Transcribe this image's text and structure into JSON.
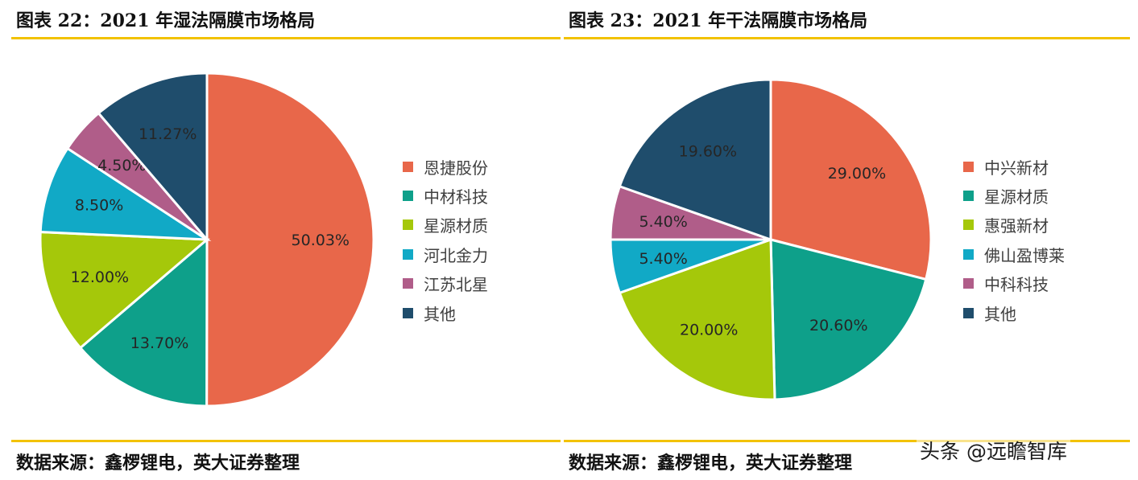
{
  "charts": [
    {
      "title": "图表 22：2021 年湿法隔膜市场格局",
      "source": "数据来源：鑫椤锂电，英大证券整理"
    },
    {
      "title": "图表 23：2021 年干法隔膜市场格局",
      "source": "数据来源：鑫椤锂电，英大证券整理"
    }
  ],
  "chart_data": [
    {
      "type": "pie",
      "title": "2021 年湿法隔膜市场格局",
      "labels": [
        "恩捷股份",
        "中材科技",
        "星源材质",
        "河北金力",
        "江苏北星",
        "其他"
      ],
      "values": [
        50.03,
        13.7,
        12.0,
        8.5,
        4.5,
        11.27
      ],
      "value_labels": [
        "50.03%",
        "13.70%",
        "12.00%",
        "8.50%",
        "4.50%",
        "11.27%"
      ],
      "colors": [
        "#e8674a",
        "#0ea08a",
        "#a5c80a",
        "#11a9c6",
        "#b05d89",
        "#1f4d6c"
      ],
      "legend_position": "right"
    },
    {
      "type": "pie",
      "title": "2021 年干法隔膜市场格局",
      "labels": [
        "中兴新材",
        "星源材质",
        "惠强新材",
        "佛山盈博莱",
        "中科科技",
        "其他"
      ],
      "values": [
        29.0,
        20.6,
        20.0,
        5.4,
        5.4,
        19.6
      ],
      "value_labels": [
        "29.00%",
        "20.60%",
        "20.00%",
        "5.40%",
        "5.40%",
        "19.60%"
      ],
      "colors": [
        "#e8674a",
        "#0ea08a",
        "#a5c80a",
        "#11a9c6",
        "#b05d89",
        "#1f4d6c"
      ],
      "legend_position": "right"
    }
  ],
  "watermark": "头条 @远瞻智库"
}
